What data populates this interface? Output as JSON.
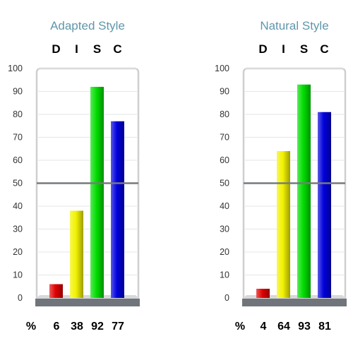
{
  "chart_data": [
    {
      "type": "bar",
      "title": "Adapted Style",
      "categories": [
        "D",
        "I",
        "S",
        "C"
      ],
      "values": [
        6,
        38,
        92,
        77
      ],
      "value_labels": [
        "6",
        "38",
        "92",
        "77"
      ],
      "value_prefix": "%",
      "colors": [
        "#e00000",
        "#f2f200",
        "#00dd00",
        "#0000dd"
      ],
      "ylim": [
        0,
        100
      ],
      "yticks": [
        0,
        10,
        20,
        30,
        40,
        50,
        60,
        70,
        80,
        90,
        100
      ],
      "reference_line": 50,
      "grid": true
    },
    {
      "type": "bar",
      "title": "Natural Style",
      "categories": [
        "D",
        "I",
        "S",
        "C"
      ],
      "values": [
        4,
        64,
        93,
        81
      ],
      "value_labels": [
        "4",
        "64",
        "93",
        "81"
      ],
      "value_prefix": "%",
      "colors": [
        "#e00000",
        "#f2f200",
        "#00dd00",
        "#0000dd"
      ],
      "ylim": [
        0,
        100
      ],
      "yticks": [
        0,
        10,
        20,
        30,
        40,
        50,
        60,
        70,
        80,
        90,
        100
      ],
      "reference_line": 50,
      "grid": true
    }
  ]
}
